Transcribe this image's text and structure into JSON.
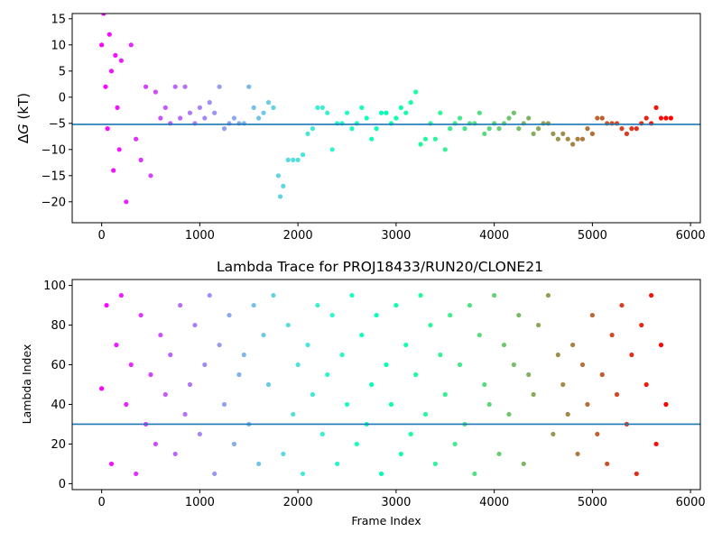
{
  "chart_data": [
    {
      "type": "scatter",
      "title": "",
      "xlabel": "",
      "ylabel_prefix": "Δ",
      "ylabel_italic": "G",
      "ylabel_suffix": " (kT)",
      "xlim": [
        -300,
        6100
      ],
      "ylim": [
        -24,
        16
      ],
      "xticks": [
        0,
        1000,
        2000,
        3000,
        4000,
        5000,
        6000
      ],
      "yticks": [
        -20,
        -15,
        -10,
        -5,
        0,
        5,
        10,
        15
      ],
      "hline": -5.2,
      "hline_color": "#1f77b4",
      "colormap": "rainbow",
      "grid": false,
      "series": [
        {
          "x": [
            0,
            20,
            40,
            60,
            80,
            100,
            120,
            140,
            160,
            180,
            200,
            250,
            300,
            350,
            400,
            450,
            500,
            550,
            600,
            650,
            700,
            750,
            800,
            850,
            900,
            950,
            1000,
            1050,
            1100,
            1150,
            1200,
            1250,
            1300,
            1350,
            1400,
            1450,
            1500,
            1550,
            1600,
            1650,
            1700,
            1750,
            1800,
            1820,
            1850,
            1900,
            1950,
            2000,
            2050,
            2100,
            2150,
            2200,
            2250,
            2300,
            2350,
            2400,
            2450,
            2500,
            2550,
            2600,
            2650,
            2700,
            2750,
            2800,
            2850,
            2900,
            2950,
            3000,
            3050,
            3100,
            3150,
            3200,
            3250,
            3300,
            3350,
            3400,
            3450,
            3500,
            3550,
            3600,
            3650,
            3700,
            3750,
            3800,
            3850,
            3900,
            3950,
            4000,
            4050,
            4100,
            4150,
            4200,
            4250,
            4300,
            4350,
            4400,
            4450,
            4500,
            4550,
            4600,
            4650,
            4700,
            4750,
            4800,
            4850,
            4900,
            4950,
            5000,
            5050,
            5100,
            5150,
            5200,
            5250,
            5300,
            5350,
            5400,
            5450,
            5500,
            5550,
            5600,
            5650,
            5700,
            5750,
            5800
          ],
          "y": [
            10,
            16,
            2,
            -6,
            12,
            5,
            -14,
            8,
            -2,
            -10,
            7,
            -20,
            10,
            -8,
            -12,
            2,
            -15,
            1,
            -4,
            -2,
            -5,
            2,
            -4,
            2,
            -3,
            -5,
            -2,
            -4,
            -1,
            -3,
            2,
            -6,
            -5,
            -4,
            -5,
            -5,
            2,
            -2,
            -4,
            -3,
            -1,
            -2,
            -15,
            -19,
            -17,
            -12,
            -12,
            -12,
            -11,
            -7,
            -6,
            -2,
            -2,
            -3,
            -10,
            -5,
            -5,
            -3,
            -6,
            -5,
            -2,
            -4,
            -8,
            -6,
            -3,
            -3,
            -5,
            -4,
            -2,
            -3,
            -1,
            1,
            -9,
            -8,
            -5,
            -8,
            -3,
            -10,
            -6,
            -5,
            -4,
            -6,
            -5,
            -5,
            -3,
            -7,
            -6,
            -5,
            -6,
            -5,
            -4,
            -3,
            -6,
            -5,
            -4,
            -7,
            -6,
            -5,
            -5,
            -7,
            -8,
            -7,
            -8,
            -9,
            -8,
            -8,
            -6,
            -7,
            -4,
            -4,
            -5,
            -5,
            -5,
            -6,
            -7,
            -6,
            -6,
            -5,
            -4,
            -5,
            -2,
            -4,
            -4,
            -4
          ]
        }
      ]
    },
    {
      "type": "scatter",
      "title": "Lambda Trace for PROJ18433/RUN20/CLONE21",
      "xlabel": "Frame Index",
      "ylabel": "Lambda Index",
      "xlim": [
        -300,
        6100
      ],
      "ylim": [
        -3,
        103
      ],
      "xticks": [
        0,
        1000,
        2000,
        3000,
        4000,
        5000,
        6000
      ],
      "yticks": [
        0,
        20,
        40,
        60,
        80,
        100
      ],
      "hline": 30,
      "hline_color": "#1f77b4",
      "colormap": "rainbow",
      "grid": false,
      "series": [
        {
          "x": [
            0,
            50,
            100,
            150,
            200,
            250,
            300,
            350,
            400,
            450,
            500,
            550,
            600,
            650,
            700,
            750,
            800,
            850,
            900,
            950,
            1000,
            1050,
            1100,
            1150,
            1200,
            1250,
            1300,
            1350,
            1400,
            1450,
            1500,
            1550,
            1600,
            1650,
            1700,
            1750,
            1850,
            1900,
            1950,
            2000,
            2050,
            2100,
            2150,
            2200,
            2250,
            2300,
            2350,
            2400,
            2450,
            2500,
            2550,
            2600,
            2650,
            2700,
            2750,
            2800,
            2850,
            2900,
            2950,
            3000,
            3050,
            3100,
            3150,
            3200,
            3250,
            3300,
            3350,
            3400,
            3450,
            3500,
            3550,
            3600,
            3650,
            3700,
            3750,
            3800,
            3850,
            3900,
            3950,
            4000,
            4050,
            4100,
            4150,
            4200,
            4250,
            4300,
            4350,
            4400,
            4450,
            4550,
            4600,
            4650,
            4700,
            4750,
            4800,
            4850,
            4900,
            4950,
            5000,
            5050,
            5100,
            5150,
            5200,
            5250,
            5300,
            5350,
            5400,
            5450,
            5500,
            5550,
            5600,
            5650,
            5700,
            5750
          ],
          "y": [
            48,
            90,
            10,
            70,
            95,
            40,
            60,
            5,
            85,
            30,
            55,
            20,
            75,
            45,
            65,
            15,
            90,
            35,
            50,
            80,
            25,
            60,
            95,
            5,
            70,
            40,
            85,
            20,
            55,
            65,
            30,
            90,
            10,
            75,
            50,
            95,
            15,
            80,
            35,
            60,
            5,
            70,
            45,
            90,
            25,
            55,
            85,
            10,
            65,
            40,
            95,
            20,
            75,
            30,
            50,
            85,
            5,
            60,
            40,
            90,
            15,
            70,
            25,
            55,
            95,
            35,
            80,
            10,
            65,
            45,
            85,
            20,
            60,
            30,
            90,
            5,
            75,
            50,
            40,
            95,
            15,
            70,
            35,
            60,
            85,
            10,
            55,
            45,
            80,
            95,
            25,
            65,
            50,
            35,
            70,
            15,
            60,
            40,
            85,
            25,
            55,
            10,
            75,
            45,
            90,
            30,
            65,
            5,
            80,
            50,
            95,
            20,
            70,
            40
          ]
        }
      ]
    }
  ]
}
